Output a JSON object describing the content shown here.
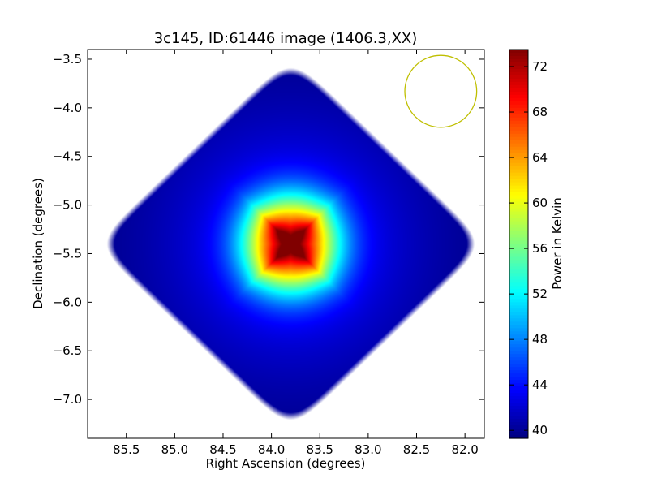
{
  "chart_data": {
    "type": "heatmap",
    "title": "3c145, ID:61446 image (1406.3,XX)",
    "xlabel": "Right Ascension (degrees)",
    "ylabel": "Declination (degrees)",
    "xlim": [
      85.9,
      81.8
    ],
    "ylim": [
      -7.4,
      -3.4
    ],
    "x_ticks": [
      85.5,
      85.0,
      84.5,
      84.0,
      83.5,
      83.0,
      82.5,
      82.0
    ],
    "x_tick_labels": [
      "85.5",
      "85.0",
      "84.5",
      "84.0",
      "83.5",
      "83.0",
      "82.5",
      "82.0"
    ],
    "y_ticks": [
      -3.5,
      -4.0,
      -4.5,
      -5.0,
      -5.5,
      -6.0,
      -6.5,
      -7.0
    ],
    "y_tick_labels": [
      "−3.5",
      "−4.0",
      "−4.5",
      "−5.0",
      "−5.5",
      "−6.0",
      "−6.5",
      "−7.0"
    ],
    "colormap": "jet",
    "colorbar": {
      "label": "Power in Kelvin",
      "range": [
        39.3,
        73.5
      ],
      "ticks": [
        40,
        44,
        48,
        52,
        56,
        60,
        64,
        68,
        72
      ],
      "tick_labels": [
        "40",
        "44",
        "48",
        "52",
        "56",
        "60",
        "64",
        "68",
        "72"
      ]
    },
    "map": {
      "shape": "diamond",
      "center": [
        83.8,
        -5.4
      ],
      "half_extent_ra": 2.1,
      "half_extent_dec": 2.0,
      "background_level": 39.5,
      "peak": {
        "ra": 83.8,
        "dec": -5.4,
        "value": 73.0
      }
    },
    "beam": {
      "center": [
        82.25,
        -3.83
      ],
      "radius_dec": 0.37,
      "color": "#bfbf00"
    },
    "frame_color": "#000000"
  }
}
